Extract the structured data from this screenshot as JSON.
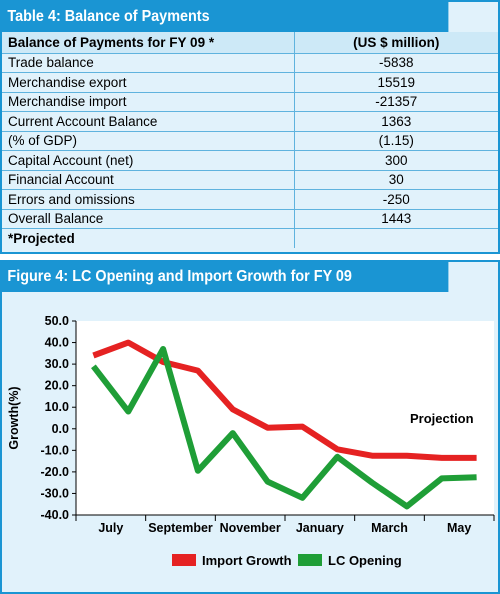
{
  "table": {
    "title": "Table 4: Balance of Payments",
    "header": {
      "label": "Balance of Payments for FY 09 *",
      "value": "(US $ million)"
    },
    "rows": [
      {
        "label": "Trade balance",
        "value": "-5838"
      },
      {
        "label": "Merchandise export",
        "value": "15519"
      },
      {
        "label": "Merchandise import",
        "value": "-21357"
      },
      {
        "label": "Current Account Balance",
        "value": "1363"
      },
      {
        "label": "(% of GDP)",
        "value": "(1.15)"
      },
      {
        "label": "Capital Account (net)",
        "value": "300"
      },
      {
        "label": "Financial Account",
        "value": "30"
      },
      {
        "label": "Errors and omissions",
        "value": "-250"
      },
      {
        "label": "Overall Balance",
        "value": "1443"
      }
    ],
    "footnote": "*Projected"
  },
  "figure": {
    "title": "Figure 4: LC Opening and Import Growth for FY 09"
  },
  "chart_data": {
    "type": "line",
    "title": "Figure 4: LC Opening and Import Growth for FY 09",
    "ylabel": "Growth(%)",
    "xlabel": "",
    "ylim": [
      -40,
      50
    ],
    "yticks": [
      50.0,
      40.0,
      30.0,
      20.0,
      10.0,
      0.0,
      -10.0,
      -20.0,
      -30.0,
      -40.0
    ],
    "ytick_labels": [
      "50.0",
      "40.0",
      "30.0",
      "20.0",
      "10.0",
      "0.0",
      "-10.0",
      "-20.0",
      "-30.0",
      "-40.0"
    ],
    "x": [
      "July",
      "August",
      "September",
      "October",
      "November",
      "December",
      "January",
      "February",
      "March",
      "April",
      "May",
      "June"
    ],
    "xtick_labels": [
      "July",
      "September",
      "November",
      "January",
      "March",
      "May"
    ],
    "grid": false,
    "legend": "bottom",
    "annotation": "Projection",
    "series": [
      {
        "name": "Import Growth",
        "color": "#e52222",
        "values": [
          34,
          40,
          31,
          27,
          9,
          0.5,
          1,
          -9.5,
          -12.5,
          -12.5,
          -13.5,
          -13.5
        ]
      },
      {
        "name": "LC Opening",
        "color": "#1f9e37",
        "values": [
          29,
          8,
          37,
          -19.5,
          -2,
          -24.5,
          -32,
          -13,
          -25,
          -36,
          -23,
          -22.5
        ]
      }
    ]
  }
}
